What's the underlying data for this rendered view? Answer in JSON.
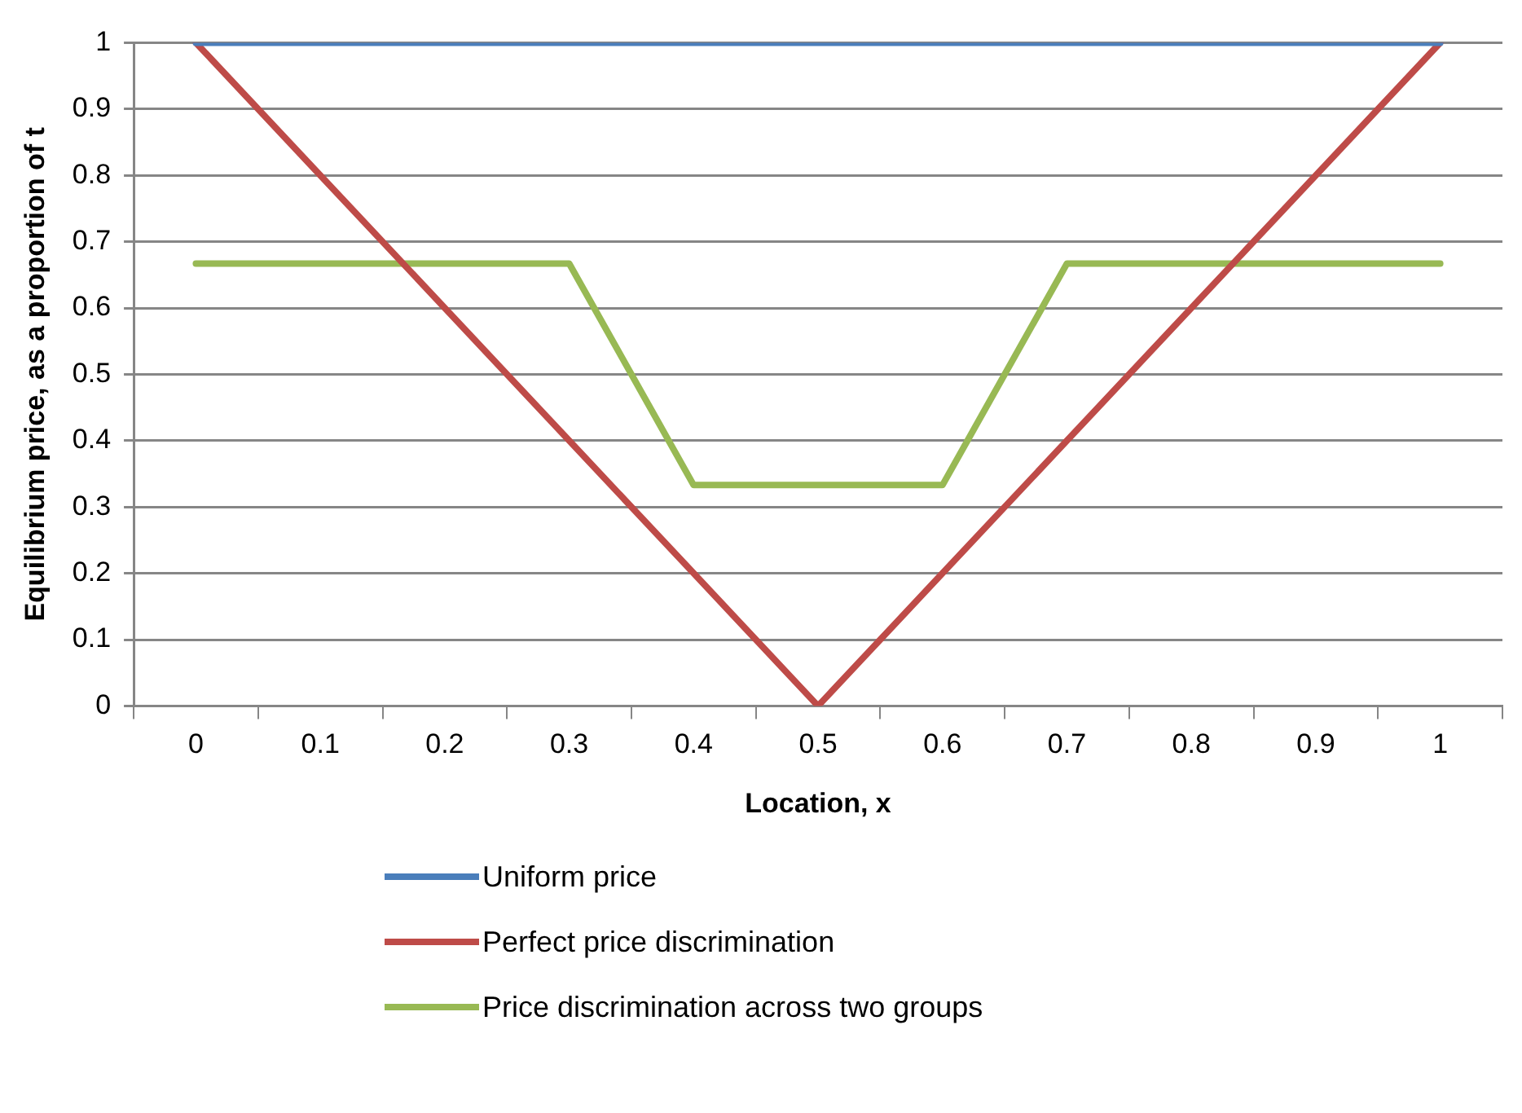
{
  "chart_data": {
    "type": "line",
    "xlabel": "Location, x",
    "ylabel": "Equilibrium price, as a proportion of t",
    "categories": [
      "0",
      "0.1",
      "0.2",
      "0.3",
      "0.4",
      "0.5",
      "0.6",
      "0.7",
      "0.8",
      "0.9",
      "1"
    ],
    "series": [
      {
        "name": "Uniform price",
        "color": "#4a7ebb",
        "values": [
          1,
          1,
          1,
          1,
          1,
          1,
          1,
          1,
          1,
          1,
          1
        ]
      },
      {
        "name": "Perfect price discrimination",
        "color": "#be4b48",
        "values": [
          1,
          0.8,
          0.6,
          0.4,
          0.2,
          0,
          0.2,
          0.4,
          0.6,
          0.8,
          1
        ]
      },
      {
        "name": "Price discrimination across two groups",
        "color": "#98b954",
        "values": [
          0.667,
          0.667,
          0.667,
          0.667,
          0.333,
          0.333,
          0.333,
          0.667,
          0.667,
          0.667,
          0.667
        ]
      }
    ],
    "ylim": [
      0,
      1
    ],
    "yticks": [
      0,
      0.1,
      0.2,
      0.3,
      0.4,
      0.5,
      0.6,
      0.7,
      0.8,
      0.9,
      1
    ],
    "grid": "y",
    "legend": "bottom"
  }
}
